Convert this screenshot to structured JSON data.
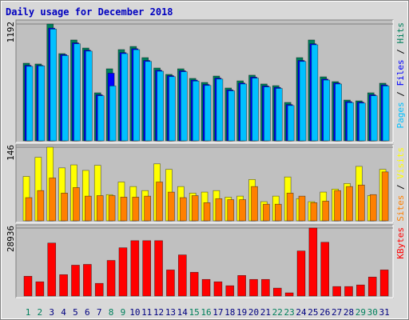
{
  "chart_data": [
    {
      "type": "bar",
      "title": "Daily usage for December 2018",
      "ylim": [
        0,
        1192
      ],
      "yticks": [
        1192
      ],
      "grid": true,
      "legend_separator": " / ",
      "series": [
        {
          "name": "Hits",
          "color": "#00805c",
          "values": [
            792,
            784,
            1192,
            890,
            1029,
            947,
            490,
            735,
            931,
            963,
            849,
            743,
            678,
            735,
            637,
            596,
            661,
            539,
            612,
            670,
            580,
            563,
            392,
            849,
            1029,
            653,
            604,
            416,
            408,
            490,
            588
          ]
        },
        {
          "name": "Files",
          "color": "#0000ff",
          "values": [
            770,
            770,
            1150,
            880,
            1000,
            925,
            470,
            690,
            900,
            940,
            820,
            720,
            665,
            715,
            620,
            575,
            640,
            520,
            590,
            650,
            560,
            545,
            370,
            820,
            990,
            630,
            590,
            400,
            395,
            470,
            570
          ]
        },
        {
          "name": "Pages",
          "color": "#00c0ff",
          "values": [
            760,
            765,
            1140,
            870,
            990,
            915,
            460,
            560,
            890,
            930,
            810,
            710,
            655,
            705,
            610,
            565,
            630,
            510,
            580,
            640,
            550,
            535,
            360,
            810,
            980,
            620,
            580,
            390,
            385,
            460,
            560
          ]
        }
      ]
    },
    {
      "type": "bar",
      "ylim": [
        0,
        146
      ],
      "yticks": [
        146
      ],
      "grid": true,
      "legend_separator": " / ",
      "series": [
        {
          "name": "Visits",
          "color": "#ffff00",
          "values": [
            88,
            126,
            146,
            105,
            111,
            100,
            110,
            52,
            77,
            68,
            60,
            113,
            102,
            68,
            55,
            57,
            60,
            47,
            49,
            82,
            38,
            49,
            87,
            44,
            38,
            57,
            63,
            74,
            108,
            50,
            102
          ]
        },
        {
          "name": "Sites",
          "color": "#ff8000",
          "values": [
            46,
            60,
            85,
            55,
            66,
            49,
            50,
            50,
            47,
            47,
            49,
            77,
            57,
            46,
            50,
            36,
            44,
            42,
            42,
            68,
            33,
            33,
            55,
            49,
            36,
            39,
            60,
            68,
            71,
            52,
            97
          ]
        }
      ]
    },
    {
      "type": "bar",
      "ylim": [
        0,
        28936
      ],
      "yticks": [
        28936
      ],
      "grid": true,
      "categories": [
        "1",
        "2",
        "3",
        "4",
        "5",
        "6",
        "7",
        "8",
        "9",
        "10",
        "11",
        "12",
        "13",
        "14",
        "15",
        "16",
        "17",
        "18",
        "19",
        "20",
        "21",
        "22",
        "23",
        "24",
        "25",
        "26",
        "27",
        "28",
        "29",
        "30",
        "31"
      ],
      "category_colors": [
        "#00805c",
        "#00805c",
        "#000080",
        "#000080",
        "#000080",
        "#000080",
        "#000080",
        "#00805c",
        "#00805c",
        "#000080",
        "#000080",
        "#000080",
        "#000080",
        "#000080",
        "#00805c",
        "#00805c",
        "#000080",
        "#000080",
        "#000080",
        "#000080",
        "#000080",
        "#00805c",
        "#00805c",
        "#000080",
        "#000080",
        "#000080",
        "#000080",
        "#000080",
        "#00805c",
        "#00805c",
        "#000080"
      ],
      "series": [
        {
          "name": "KBytes",
          "color": "#ff0000",
          "values": [
            8412,
            6056,
            22543,
            9085,
            13122,
            13459,
            5383,
            15141,
            20525,
            23553,
            23553,
            23553,
            11103,
            17496,
            10094,
            7065,
            6056,
            4374,
            8748,
            7065,
            7065,
            3365,
            1346,
            19178,
            28936,
            22879,
            4037,
            4037,
            4710,
            8075,
            11103
          ]
        }
      ]
    }
  ]
}
